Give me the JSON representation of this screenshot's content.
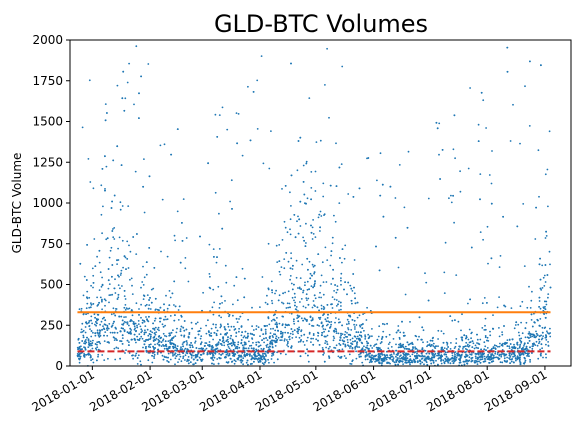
{
  "chart_data": {
    "type": "scatter",
    "title": "GLD-BTC Volumes",
    "xlabel": "",
    "ylabel": "GLD-BTC Volume",
    "xlim": [
      "2017-12-20",
      "2018-09-15"
    ],
    "ylim": [
      0,
      2000
    ],
    "yticks": [
      0,
      250,
      500,
      750,
      1000,
      1250,
      1500,
      1750,
      2000
    ],
    "ytick_labels": [
      "0",
      "250",
      "500",
      "750",
      "1000",
      "1250",
      "1500",
      "1750",
      "2000"
    ],
    "xticks": [
      "2018-01-01",
      "2018-02-01",
      "2018-03-01",
      "2018-04-01",
      "2018-05-01",
      "2018-06-01",
      "2018-07-01",
      "2018-08-01",
      "2018-09-01"
    ],
    "xtick_labels": [
      "2018-01-01",
      "2018-02-01",
      "2018-03-01",
      "2018-04-01",
      "2018-05-01",
      "2018-06-01",
      "2018-07-01",
      "2018-08-01",
      "2018-09-01"
    ],
    "grid": false,
    "series": [
      {
        "kind": "points",
        "color": "#1f77b4",
        "x_range": [
          "2017-12-24",
          "2018-09-04"
        ],
        "density_profile": [
          {
            "x": "2017-12-24",
            "typical_y": 60,
            "max_y": 1800
          },
          {
            "x": "2018-01-10",
            "typical_y": 300,
            "max_y": 2000
          },
          {
            "x": "2018-01-20",
            "typical_y": 250,
            "max_y": 2000
          },
          {
            "x": "2018-02-05",
            "typical_y": 150,
            "max_y": 1950
          },
          {
            "x": "2018-03-01",
            "typical_y": 80,
            "max_y": 1200
          },
          {
            "x": "2018-03-05",
            "typical_y": 120,
            "max_y": 1500
          },
          {
            "x": "2018-04-01",
            "typical_y": 60,
            "max_y": 1900
          },
          {
            "x": "2018-04-22",
            "typical_y": 350,
            "max_y": 2000
          },
          {
            "x": "2018-05-08",
            "typical_y": 250,
            "max_y": 2000
          },
          {
            "x": "2018-06-01",
            "typical_y": 50,
            "max_y": 1500
          },
          {
            "x": "2018-07-01",
            "typical_y": 50,
            "max_y": 1500
          },
          {
            "x": "2018-08-01",
            "typical_y": 60,
            "max_y": 1950
          },
          {
            "x": "2018-08-20",
            "typical_y": 80,
            "max_y": 2000
          },
          {
            "x": "2018-09-03",
            "typical_y": 250,
            "max_y": 2000
          }
        ]
      },
      {
        "kind": "hline",
        "y": 330,
        "color": "#ff7f0e",
        "style": "solid",
        "x_range": [
          "2017-12-24",
          "2018-09-04"
        ]
      },
      {
        "kind": "hline",
        "y": 90,
        "color": "#d62728",
        "style": "dashed",
        "x_range": [
          "2017-12-24",
          "2018-09-04"
        ]
      }
    ]
  }
}
